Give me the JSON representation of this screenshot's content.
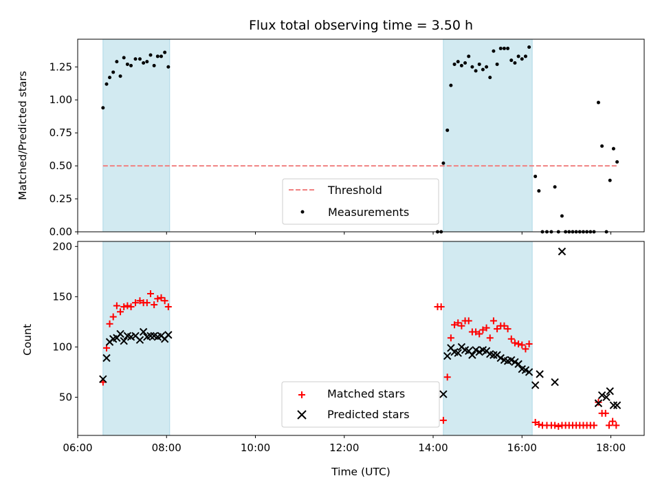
{
  "chart_data": [
    {
      "type": "scatter",
      "panel": "top",
      "title": "Flux total observing time = 3.50 h",
      "ylabel": "Matched/Predicted stars",
      "xlabel": "",
      "xlim": [
        6.0,
        18.75
      ],
      "ylim": [
        0.0,
        1.46
      ],
      "yticks": [
        "0.00",
        "0.25",
        "0.50",
        "0.75",
        "1.00",
        "1.25"
      ],
      "ytick_values": [
        0.0,
        0.25,
        0.5,
        0.75,
        1.0,
        1.25
      ],
      "legend_position": "bottom-center",
      "shaded_regions": [
        [
          6.57,
          8.07
        ],
        [
          14.23,
          16.23
        ]
      ],
      "shaded_color": "#add8e6",
      "threshold": {
        "name": "Threshold",
        "value": 0.5,
        "x_range": [
          6.57,
          18.15
        ],
        "color": "#f08080",
        "style": "dashed"
      },
      "series": [
        {
          "name": "Measurements",
          "color": "#000000",
          "marker": "dot",
          "points": [
            [
              6.57,
              0.94
            ],
            [
              6.65,
              1.12
            ],
            [
              6.72,
              1.17
            ],
            [
              6.8,
              1.21
            ],
            [
              6.88,
              1.29
            ],
            [
              6.96,
              1.18
            ],
            [
              7.04,
              1.32
            ],
            [
              7.12,
              1.27
            ],
            [
              7.2,
              1.26
            ],
            [
              7.3,
              1.31
            ],
            [
              7.4,
              1.31
            ],
            [
              7.48,
              1.28
            ],
            [
              7.56,
              1.29
            ],
            [
              7.64,
              1.34
            ],
            [
              7.72,
              1.26
            ],
            [
              7.8,
              1.33
            ],
            [
              7.88,
              1.33
            ],
            [
              7.96,
              1.36
            ],
            [
              8.04,
              1.25
            ],
            [
              14.1,
              0.0
            ],
            [
              14.18,
              0.0
            ],
            [
              14.23,
              0.52
            ],
            [
              14.32,
              0.77
            ],
            [
              14.4,
              1.11
            ],
            [
              14.48,
              1.27
            ],
            [
              14.56,
              1.29
            ],
            [
              14.64,
              1.26
            ],
            [
              14.72,
              1.28
            ],
            [
              14.8,
              1.33
            ],
            [
              14.88,
              1.25
            ],
            [
              14.96,
              1.22
            ],
            [
              15.04,
              1.27
            ],
            [
              15.12,
              1.23
            ],
            [
              15.2,
              1.25
            ],
            [
              15.28,
              1.17
            ],
            [
              15.36,
              1.37
            ],
            [
              15.44,
              1.27
            ],
            [
              15.52,
              1.39
            ],
            [
              15.6,
              1.39
            ],
            [
              15.68,
              1.39
            ],
            [
              15.76,
              1.3
            ],
            [
              15.84,
              1.28
            ],
            [
              15.92,
              1.33
            ],
            [
              16.0,
              1.31
            ],
            [
              16.08,
              1.33
            ],
            [
              16.16,
              1.4
            ],
            [
              16.3,
              0.42
            ],
            [
              16.38,
              0.31
            ],
            [
              16.46,
              0.0
            ],
            [
              16.56,
              0.0
            ],
            [
              16.66,
              0.0
            ],
            [
              16.74,
              0.34
            ],
            [
              16.82,
              0.0
            ],
            [
              16.9,
              0.12
            ],
            [
              16.98,
              0.0
            ],
            [
              17.06,
              0.0
            ],
            [
              17.14,
              0.0
            ],
            [
              17.22,
              0.0
            ],
            [
              17.3,
              0.0
            ],
            [
              17.38,
              0.0
            ],
            [
              17.46,
              0.0
            ],
            [
              17.54,
              0.0
            ],
            [
              17.62,
              0.0
            ],
            [
              17.72,
              0.98
            ],
            [
              17.8,
              0.65
            ],
            [
              17.9,
              0.0
            ],
            [
              17.98,
              0.39
            ],
            [
              18.06,
              0.63
            ],
            [
              18.14,
              0.53
            ]
          ]
        }
      ]
    },
    {
      "type": "scatter",
      "panel": "bottom",
      "title": "",
      "xlabel": "Time (UTC)",
      "ylabel": "Count",
      "xlim": [
        6.0,
        18.75
      ],
      "ylim": [
        12,
        205
      ],
      "xticks": [
        "06:00",
        "08:00",
        "10:00",
        "12:00",
        "14:00",
        "16:00",
        "18:00"
      ],
      "xtick_values": [
        6,
        8,
        10,
        12,
        14,
        16,
        18
      ],
      "yticks": [
        "50",
        "100",
        "150",
        "200"
      ],
      "ytick_values": [
        50,
        100,
        150,
        200
      ],
      "legend_position": "bottom-center",
      "shaded_regions": [
        [
          6.57,
          8.07
        ],
        [
          14.23,
          16.23
        ]
      ],
      "shaded_color": "#add8e6",
      "series": [
        {
          "name": "Matched stars",
          "color": "#ff0000",
          "marker": "plus",
          "points": [
            [
              6.57,
              65
            ],
            [
              6.65,
              99
            ],
            [
              6.72,
              123
            ],
            [
              6.8,
              130
            ],
            [
              6.88,
              141
            ],
            [
              6.96,
              135
            ],
            [
              7.04,
              140
            ],
            [
              7.12,
              141
            ],
            [
              7.2,
              140
            ],
            [
              7.3,
              144
            ],
            [
              7.4,
              146
            ],
            [
              7.48,
              144
            ],
            [
              7.56,
              144
            ],
            [
              7.64,
              153
            ],
            [
              7.72,
              142
            ],
            [
              7.8,
              148
            ],
            [
              7.88,
              149
            ],
            [
              7.96,
              146
            ],
            [
              8.04,
              140
            ],
            [
              14.1,
              140
            ],
            [
              14.18,
              140
            ],
            [
              14.23,
              27
            ],
            [
              14.32,
              70
            ],
            [
              14.4,
              109
            ],
            [
              14.48,
              122
            ],
            [
              14.56,
              124
            ],
            [
              14.64,
              121
            ],
            [
              14.72,
              126
            ],
            [
              14.8,
              126
            ],
            [
              14.88,
              115
            ],
            [
              14.96,
              115
            ],
            [
              15.04,
              113
            ],
            [
              15.12,
              117
            ],
            [
              15.2,
              119
            ],
            [
              15.28,
              109
            ],
            [
              15.36,
              126
            ],
            [
              15.44,
              118
            ],
            [
              15.52,
              121
            ],
            [
              15.6,
              121
            ],
            [
              15.68,
              118
            ],
            [
              15.76,
              108
            ],
            [
              15.84,
              104
            ],
            [
              15.92,
              103
            ],
            [
              16.0,
              102
            ],
            [
              16.08,
              98
            ],
            [
              16.16,
              103
            ],
            [
              16.3,
              25
            ],
            [
              16.38,
              23
            ],
            [
              16.46,
              22
            ],
            [
              16.56,
              22
            ],
            [
              16.66,
              22
            ],
            [
              16.74,
              22
            ],
            [
              16.82,
              21
            ],
            [
              16.9,
              22
            ],
            [
              16.98,
              22
            ],
            [
              17.06,
              22
            ],
            [
              17.14,
              22
            ],
            [
              17.22,
              22
            ],
            [
              17.3,
              22
            ],
            [
              17.38,
              22
            ],
            [
              17.46,
              22
            ],
            [
              17.54,
              22
            ],
            [
              17.62,
              22
            ],
            [
              17.72,
              45
            ],
            [
              17.8,
              34
            ],
            [
              17.88,
              34
            ],
            [
              17.96,
              22
            ],
            [
              18.04,
              26
            ],
            [
              18.12,
              22
            ]
          ]
        },
        {
          "name": "Predicted stars",
          "color": "#000000",
          "marker": "cross",
          "points": [
            [
              6.57,
              68
            ],
            [
              6.65,
              89
            ],
            [
              6.72,
              105
            ],
            [
              6.8,
              108
            ],
            [
              6.88,
              109
            ],
            [
              6.96,
              113
            ],
            [
              7.04,
              106
            ],
            [
              7.12,
              111
            ],
            [
              7.2,
              110
            ],
            [
              7.3,
              111
            ],
            [
              7.4,
              107
            ],
            [
              7.48,
              115
            ],
            [
              7.56,
              110
            ],
            [
              7.64,
              111
            ],
            [
              7.72,
              111
            ],
            [
              7.8,
              110
            ],
            [
              7.88,
              111
            ],
            [
              7.96,
              108
            ],
            [
              8.04,
              112
            ],
            [
              14.23,
              53
            ],
            [
              14.32,
              91
            ],
            [
              14.4,
              99
            ],
            [
              14.48,
              95
            ],
            [
              14.56,
              94
            ],
            [
              14.64,
              100
            ],
            [
              14.72,
              97
            ],
            [
              14.8,
              96
            ],
            [
              14.88,
              92
            ],
            [
              14.96,
              97
            ],
            [
              15.04,
              95
            ],
            [
              15.12,
              97
            ],
            [
              15.2,
              96
            ],
            [
              15.28,
              93
            ],
            [
              15.36,
              92
            ],
            [
              15.44,
              92
            ],
            [
              15.52,
              89
            ],
            [
              15.6,
              87
            ],
            [
              15.68,
              86
            ],
            [
              15.76,
              87
            ],
            [
              15.84,
              85
            ],
            [
              15.92,
              83
            ],
            [
              16.0,
              78
            ],
            [
              16.08,
              77
            ],
            [
              16.16,
              75
            ],
            [
              16.3,
              62
            ],
            [
              16.4,
              73
            ],
            [
              16.74,
              65
            ],
            [
              16.9,
              195
            ],
            [
              17.72,
              44
            ],
            [
              17.8,
              52
            ],
            [
              17.9,
              50
            ],
            [
              17.98,
              56
            ],
            [
              18.06,
              42
            ],
            [
              18.14,
              42
            ]
          ]
        }
      ]
    }
  ]
}
